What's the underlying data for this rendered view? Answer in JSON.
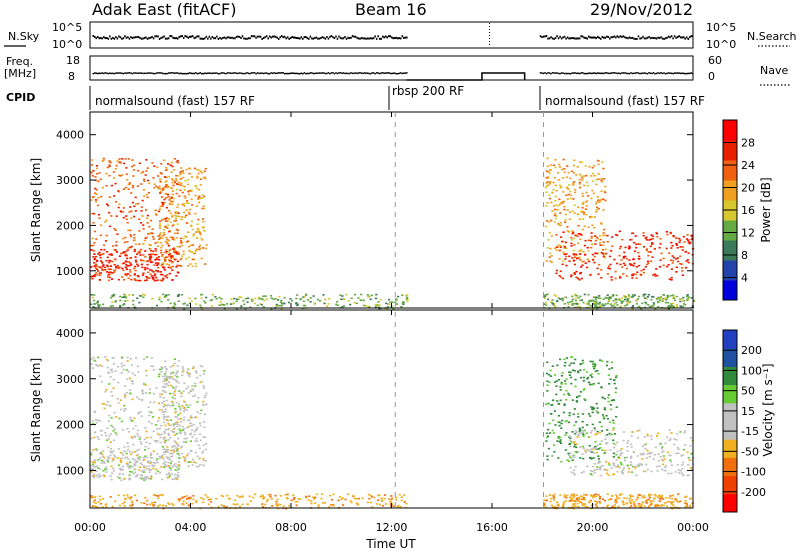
{
  "header": {
    "radar": "Adak East (fitACF)",
    "beam": "Beam 16",
    "date": "29/Nov/2012"
  },
  "panels": {
    "noise": {
      "left_label": "N.Sky",
      "right_label": "N.Search",
      "left_ticks": [
        "10^5",
        "10^0"
      ],
      "right_ticks": [
        "10^5",
        "10^0"
      ]
    },
    "freq": {
      "left_label_line1": "Freq.",
      "left_label_line2": "[MHz]",
      "right_label": "Nave",
      "left_ticks": [
        "18",
        "8"
      ],
      "right_ticks": [
        "60",
        "0"
      ]
    },
    "cpid": {
      "label": "CPID",
      "segments": [
        {
          "name": "normalsound (fast) 157 RF"
        },
        {
          "name": "rbsp 200 RF"
        },
        {
          "name": "normalsound (fast) 157 RF"
        }
      ]
    }
  },
  "time_axis": {
    "title": "Time UT",
    "ticks": [
      "00:00",
      "04:00",
      "08:00",
      "12:00",
      "16:00",
      "20:00",
      "00:00"
    ]
  },
  "colors": {
    "power_scale": [
      "#0000dd",
      "#2244aa",
      "#3a7a5a",
      "#66aa44",
      "#d8c830",
      "#f0a020",
      "#f06010",
      "#e82000",
      "#ff0000"
    ],
    "velocity_scale": [
      "#2040c0",
      "#2050a0",
      "#2f8a3a",
      "#66cc33",
      "#c0c0c0",
      "#c0c0c0",
      "#f0b020",
      "#f07010",
      "#f04000",
      "#ff0000"
    ]
  },
  "chart_data": [
    {
      "type": "heatmap",
      "title": "",
      "ylabel": "Slant Range [km]",
      "xlabel": "",
      "xlim": [
        "00:00",
        "00:00"
      ],
      "ylim": [
        180,
        4500
      ],
      "y_ticks": [
        1000,
        2000,
        3000,
        4000
      ],
      "colorbar": {
        "label": "Power [dB]",
        "ticks": [
          4,
          8,
          12,
          16,
          20,
          24,
          28
        ],
        "range": [
          0,
          32
        ]
      },
      "regions": [
        {
          "desc": "strong backscatter band",
          "t_start_h": 0.0,
          "t_end_h": 3.5,
          "range_km": [
            800,
            1500
          ],
          "power_db": 28
        },
        {
          "desc": "backscatter rising arc",
          "t_start_h": 2.7,
          "t_end_h": 4.6,
          "range_km": [
            1100,
            3300
          ],
          "power_db": 20
        },
        {
          "desc": "scattered echoes",
          "t_start_h": 0.0,
          "t_end_h": 3.6,
          "range_km": [
            1500,
            3500
          ],
          "power_db": 24
        },
        {
          "desc": "near-range clutter",
          "t_start_h": 0.0,
          "t_end_h": 12.6,
          "range_km": [
            180,
            500
          ],
          "power_db": 12
        },
        {
          "desc": "descending arc",
          "t_start_h": 18.1,
          "t_end_h": 20.5,
          "range_km": [
            1200,
            3500
          ],
          "power_db": 20
        },
        {
          "desc": "strong backscatter band",
          "t_start_h": 18.5,
          "t_end_h": 24.0,
          "range_km": [
            800,
            1900
          ],
          "power_db": 28
        },
        {
          "desc": "near-range clutter",
          "t_start_h": 18.0,
          "t_end_h": 24.0,
          "range_km": [
            180,
            500
          ],
          "power_db": 12
        }
      ]
    },
    {
      "type": "heatmap",
      "title": "",
      "ylabel": "Slant Range [km]",
      "xlabel": "Time UT",
      "xlim": [
        "00:00",
        "00:00"
      ],
      "ylim": [
        180,
        4500
      ],
      "y_ticks": [
        1000,
        2000,
        3000,
        4000
      ],
      "colorbar": {
        "label": "Velocity [m s⁻¹]",
        "ticks": [
          200,
          100,
          50,
          15,
          -15,
          -50,
          -100,
          -200
        ],
        "range": [
          -250,
          250
        ]
      },
      "regions": [
        {
          "desc": "ground scatter",
          "t_start_h": 0.0,
          "t_end_h": 3.5,
          "range_km": [
            800,
            1500
          ],
          "velocity": 0
        },
        {
          "desc": "ground scatter arc",
          "t_start_h": 2.7,
          "t_end_h": 4.6,
          "range_km": [
            1100,
            3300
          ],
          "velocity": 0
        },
        {
          "desc": "scattered echoes",
          "t_start_h": 0.0,
          "t_end_h": 3.6,
          "range_km": [
            1500,
            3500
          ],
          "velocity": 0
        },
        {
          "desc": "near-range clutter",
          "t_start_h": 0.0,
          "t_end_h": 12.6,
          "range_km": [
            180,
            500
          ],
          "velocity": -40
        },
        {
          "desc": "ionospheric scatter",
          "t_start_h": 18.1,
          "t_end_h": 21.0,
          "range_km": [
            1200,
            3500
          ],
          "velocity": 60
        },
        {
          "desc": "ground scatter band",
          "t_start_h": 19.0,
          "t_end_h": 24.0,
          "range_km": [
            900,
            1900
          ],
          "velocity": 0
        },
        {
          "desc": "near-range clutter",
          "t_start_h": 18.0,
          "t_end_h": 24.0,
          "range_km": [
            180,
            500
          ],
          "velocity": -40
        }
      ]
    }
  ]
}
